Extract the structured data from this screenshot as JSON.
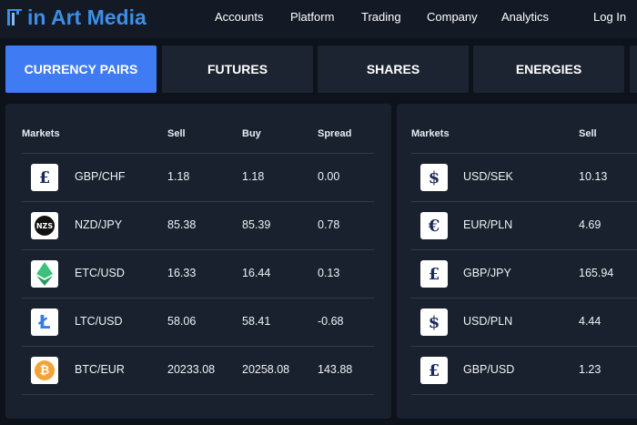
{
  "header": {
    "logo": "in Art Media",
    "nav": [
      "Accounts",
      "Platform",
      "Trading",
      "Company",
      "Analytics"
    ],
    "login": "Log In"
  },
  "tabs": [
    "CURRENCY PAIRS",
    "FUTURES",
    "SHARES",
    "ENERGIES"
  ],
  "tables": [
    {
      "columns": [
        "Markets",
        "Sell",
        "Buy",
        "Spread"
      ],
      "rows": [
        {
          "icon": "£",
          "cells": [
            "GBP/CHF",
            "1.18",
            "1.18",
            "0.00"
          ]
        },
        {
          "icon": "NZS",
          "cells": [
            "NZD/JPY",
            "85.38",
            "85.39",
            "0.78"
          ]
        },
        {
          "cells": [
            "ETC/USD",
            "16.33",
            "16.44",
            "0.13"
          ]
        },
        {
          "icon": "Ł",
          "cells": [
            "LTC/USD",
            "58.06",
            "58.41",
            "-0.68"
          ]
        },
        {
          "icon": "₿",
          "cells": [
            "BTC/EUR",
            "20233.08",
            "20258.08",
            "143.88"
          ]
        }
      ]
    },
    {
      "columns": [
        "Markets",
        "Sell"
      ],
      "rows": [
        {
          "icon": "$",
          "cells": [
            "USD/SEK",
            "10.13"
          ]
        },
        {
          "icon": "€",
          "cells": [
            "EUR/PLN",
            "4.69"
          ]
        },
        {
          "icon": "£",
          "cells": [
            "GBP/JPY",
            "165.94"
          ]
        },
        {
          "icon": "$",
          "cells": [
            "USD/PLN",
            "4.44"
          ]
        },
        {
          "icon": "£",
          "cells": [
            "GBP/USD",
            "1.23"
          ]
        }
      ]
    }
  ]
}
